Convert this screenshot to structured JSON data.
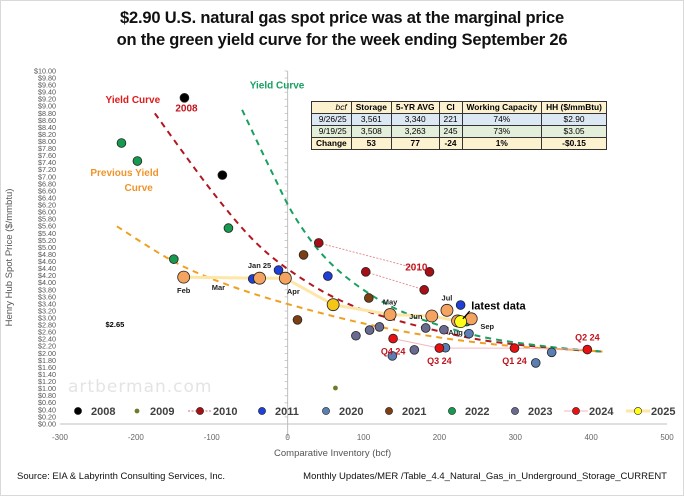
{
  "title": {
    "line1": "$2.90 U.S. natural gas spot price was at the marginal price",
    "line2": "on the green yield curve for the week ending September 26"
  },
  "footer": {
    "source": "Source: EIA & Labyrinth Consulting Services, Inc.",
    "path": "Monthly Updates/MER /Table_4.4_Natural_Gas_in_Underground_Storage_CURRENT"
  },
  "watermark": "artberman.com",
  "table": {
    "headers": [
      "bcf",
      "Storage",
      "5-YR AVG",
      "CI",
      "Working Capacity",
      "HH ($/mmBtu)"
    ],
    "rows": [
      [
        "9/26/25",
        "3,561",
        "3,340",
        "221",
        "74%",
        "$2.90"
      ],
      [
        "9/19/25",
        "3,508",
        "3,263",
        "245",
        "73%",
        "$3.05"
      ],
      [
        "Change",
        "53",
        "77",
        "-24",
        "1%",
        "-$0.15"
      ]
    ]
  },
  "chart_data": {
    "type": "scatter",
    "xlabel": "Comparative Inventory (bcf)",
    "ylabel": "Henry Hub Spot Price ($/mmbtu)",
    "xlim": [
      -300,
      500
    ],
    "ylim": [
      0,
      10
    ],
    "x_ticks": [
      -300,
      -200,
      -100,
      0,
      100,
      200,
      300,
      400,
      500
    ],
    "x_tick_labels": [
      "-300",
      "-200",
      "-100",
      "0",
      "100",
      "200",
      "300",
      "400",
      "500"
    ],
    "y_tick_step": 0.2,
    "y_tick_format": "$",
    "grid": false,
    "legend_position": "bottom-inside",
    "series": [
      {
        "name": "2008",
        "color": "#000000",
        "marker": "dot",
        "line": false,
        "points": [
          [
            -136,
            9.24
          ],
          [
            -86,
            7.05
          ]
        ]
      },
      {
        "name": "2009",
        "color": "#6b7d2a",
        "marker": "small-dot",
        "line": false,
        "points": [
          [
            63,
            1.02
          ]
        ]
      },
      {
        "name": "2010",
        "color": "#a50f15",
        "marker": "dot",
        "line": "dotted",
        "points": [
          [
            41,
            5.13
          ],
          [
            187,
            4.31
          ]
        ],
        "points2": [
          [
            103,
            4.31
          ],
          [
            180,
            3.8
          ]
        ]
      },
      {
        "name": "2011",
        "color": "#1f3fd9",
        "marker": "dot",
        "line": false,
        "points": [
          [
            -46,
            4.11
          ],
          [
            -12,
            4.36
          ],
          [
            53,
            4.19
          ],
          [
            228,
            3.37
          ]
        ]
      },
      {
        "name": "2020",
        "color": "#5a7fb3",
        "marker": "dot",
        "line": false,
        "points": [
          [
            138,
            1.93
          ],
          [
            208,
            2.16
          ],
          [
            239,
            2.56
          ],
          [
            327,
            1.73
          ],
          [
            348,
            2.03
          ]
        ]
      },
      {
        "name": "2021",
        "color": "#7b3f12",
        "marker": "dot",
        "line": false,
        "points": [
          [
            21,
            4.79
          ],
          [
            13,
            2.95
          ],
          [
            107,
            3.57
          ]
        ]
      },
      {
        "name": "2022",
        "color": "#159a4f",
        "marker": "dot",
        "line": false,
        "points": [
          [
            -219,
            7.96
          ],
          [
            -198,
            7.45
          ],
          [
            -150,
            4.67
          ],
          [
            -78,
            5.55
          ],
          [
            236,
            2.9
          ]
        ]
      },
      {
        "name": "2023",
        "color": "#686a8f",
        "marker": "dot",
        "line": false,
        "points": [
          [
            108,
            2.66
          ],
          [
            121,
            2.75
          ],
          [
            182,
            2.72
          ],
          [
            206,
            2.67
          ],
          [
            90,
            2.5
          ],
          [
            167,
            2.1
          ]
        ]
      },
      {
        "name": "2024",
        "color": "#e81010",
        "marker": "dot",
        "line": "solid-pink",
        "points": [
          [
            139,
            2.42
          ],
          [
            395,
            2.11
          ],
          [
            299,
            2.15
          ],
          [
            200,
            2.15
          ]
        ],
        "labels": [
          "Q4 24",
          "Q2 24",
          "Q1 24",
          "Q3 24"
        ]
      },
      {
        "name": "2025",
        "color": "#f4a460",
        "marker": "dot-large",
        "line": "solid-yellow",
        "points": [
          [
            -137,
            4.16
          ],
          [
            -37,
            4.13
          ],
          [
            -3,
            4.13
          ],
          [
            60,
            3.38
          ],
          [
            135,
            3.1
          ],
          [
            190,
            3.06
          ],
          [
            224,
            2.92
          ],
          [
            210,
            3.22
          ],
          [
            242,
            2.98
          ],
          [
            228,
            2.9
          ]
        ],
        "labels": [
          "Feb",
          "Jan 25",
          "Apr",
          "",
          "May",
          "Jun",
          "Aug",
          "Jul",
          "Sep",
          ""
        ]
      }
    ],
    "curves": [
      {
        "name": "Yield Curve (red)",
        "color": "#b01820",
        "points": [
          [
            -175,
            8.8
          ],
          [
            -100,
            6.6
          ],
          [
            -40,
            5.1
          ],
          [
            20,
            4.1
          ],
          [
            80,
            3.4
          ],
          [
            150,
            2.9
          ],
          [
            250,
            2.4
          ],
          [
            350,
            2.15
          ],
          [
            415,
            2.05
          ]
        ]
      },
      {
        "name": "Yield Curve (green)",
        "color": "#17a060",
        "points": [
          [
            -60,
            8.9
          ],
          [
            -20,
            7.1
          ],
          [
            10,
            5.85
          ],
          [
            50,
            4.7
          ],
          [
            100,
            3.8
          ],
          [
            160,
            3.1
          ],
          [
            250,
            2.5
          ],
          [
            340,
            2.2
          ],
          [
            415,
            2.05
          ]
        ]
      },
      {
        "name": "Previous Yield Curve",
        "color": "#f0a020",
        "points": [
          [
            -225,
            5.6
          ],
          [
            -150,
            4.6
          ],
          [
            -80,
            3.95
          ],
          [
            0,
            3.4
          ],
          [
            100,
            2.85
          ],
          [
            200,
            2.45
          ],
          [
            300,
            2.2
          ],
          [
            380,
            2.1
          ],
          [
            415,
            2.05
          ]
        ]
      }
    ],
    "annotations": [
      {
        "text": "Yield Curve",
        "color": "#e01a1a",
        "x": -240,
        "y": 9.1
      },
      {
        "text": "2008",
        "color": "#c0141e",
        "x": -148,
        "y": 8.85
      },
      {
        "text": "Yield Curve",
        "color": "#17a060",
        "x": -50,
        "y": 9.5
      },
      {
        "text": "Previous Yield",
        "color": "#f0942a",
        "x": -260,
        "y": 7.02
      },
      {
        "text": "Curve",
        "color": "#f0942a",
        "x": -215,
        "y": 6.6
      },
      {
        "text": "2010",
        "color": "#c0141e",
        "x": 155,
        "y": 4.35
      },
      {
        "text": "latest data",
        "color": "#000000",
        "x": 242,
        "y": 3.25
      },
      {
        "text": "$2.65",
        "color": "#000000",
        "x": -240,
        "y": 2.75
      },
      {
        "text": "Mar",
        "color": "#222222",
        "x": -100,
        "y": 3.8
      }
    ],
    "legend": [
      "2008",
      "2009",
      "2010",
      "2011",
      "2020",
      "2021",
      "2022",
      "2023",
      "2024",
      "2025"
    ]
  }
}
